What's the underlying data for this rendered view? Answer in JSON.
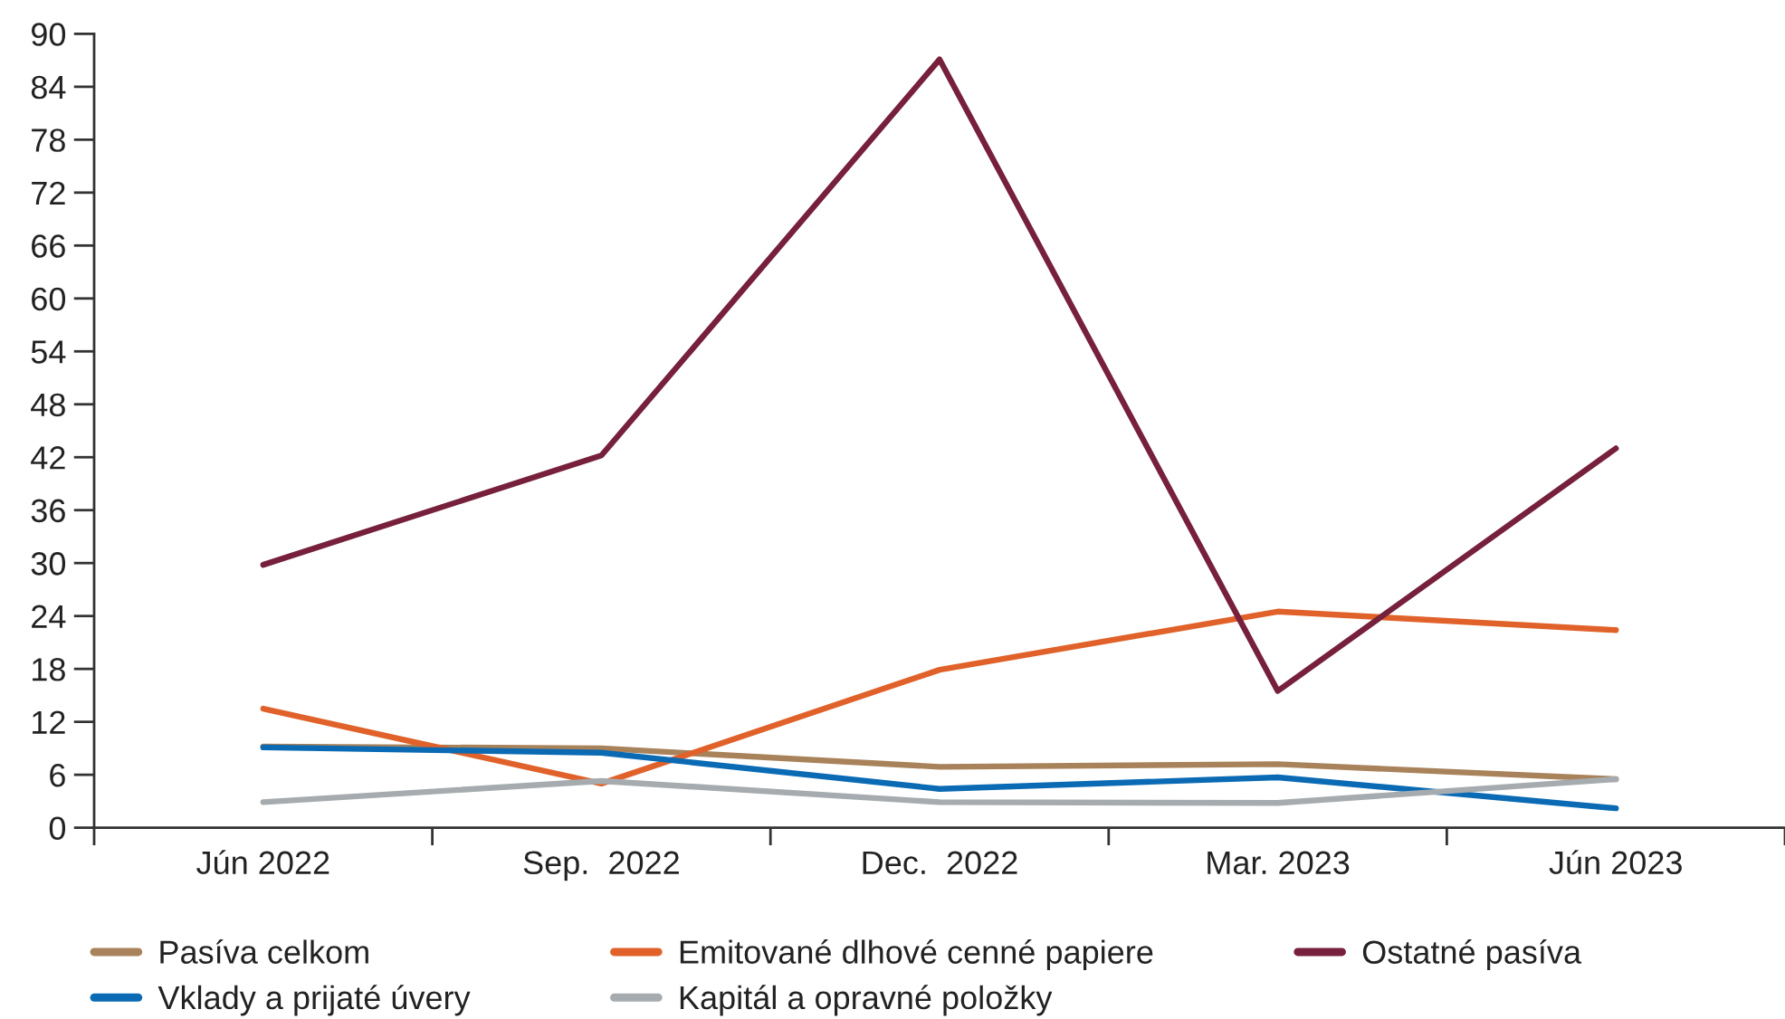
{
  "chart_data": {
    "type": "line",
    "categories": [
      "Jún 2022",
      "Sep.  2022",
      "Dec.  2022",
      "Mar. 2023",
      "Jún 2023"
    ],
    "series": [
      {
        "name": "Pasíva celkom",
        "color": "#a8825a",
        "values": [
          9.2,
          9.0,
          6.9,
          7.2,
          5.5
        ]
      },
      {
        "name": "Emitované dlhové cenné papiere",
        "color": "#e0622a",
        "values": [
          13.5,
          5.0,
          17.9,
          24.5,
          22.4
        ]
      },
      {
        "name": "Ostatné pasíva",
        "color": "#76203c",
        "values": [
          29.8,
          42.2,
          87.1,
          15.5,
          43.0
        ]
      },
      {
        "name": "Vklady a prijaté úvery",
        "color": "#0a6ab4",
        "values": [
          9.1,
          8.5,
          4.4,
          5.7,
          2.2
        ]
      },
      {
        "name": "Kapitál a opravné položky",
        "color": "#a5abaf",
        "values": [
          2.9,
          5.3,
          2.9,
          2.8,
          5.5
        ]
      }
    ],
    "ylim": [
      0,
      90
    ],
    "yticks": [
      0,
      6,
      12,
      18,
      24,
      30,
      36,
      42,
      48,
      54,
      60,
      66,
      72,
      78,
      84,
      90
    ],
    "legend": "bottom",
    "grid": false,
    "line_style": "solid",
    "marker": "none"
  }
}
